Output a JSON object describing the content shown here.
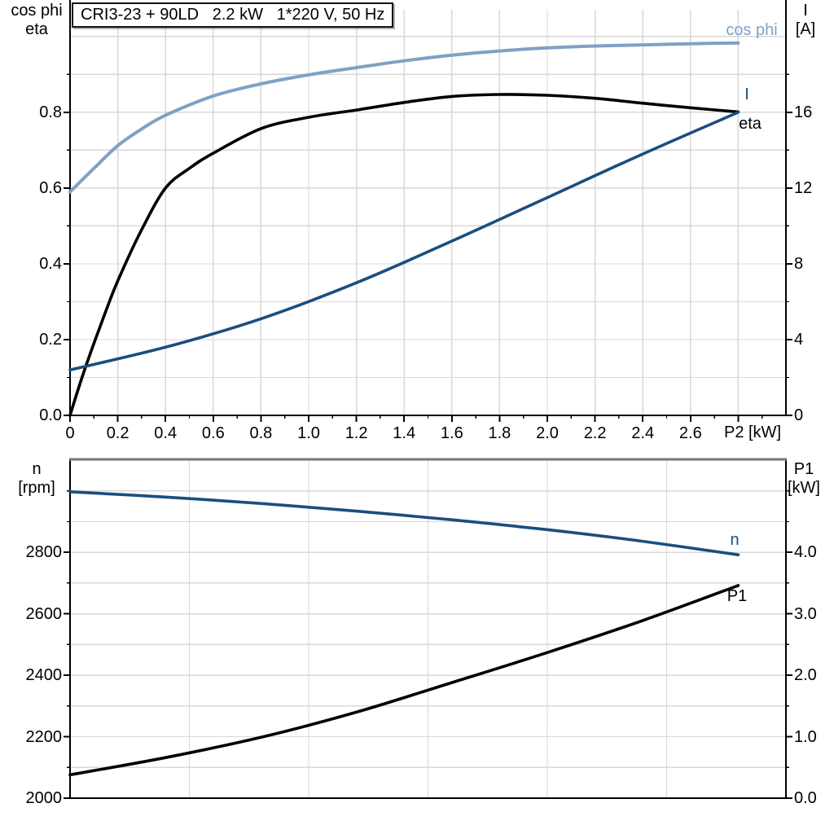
{
  "title_box": "CRI3-23 + 90LD   2.2 kW   1*220 V, 50 Hz",
  "colors": {
    "light_blue": "#7EA1C6",
    "dark_blue": "#1B4E7D",
    "black": "#000000",
    "grid": "#D8D8D8",
    "frame": "#000000",
    "frame_gray": "#757575"
  },
  "chart_data": [
    {
      "id": "top",
      "type": "line",
      "x_axis": {
        "label": "P2 [kW]",
        "min": 0,
        "max": 3.0,
        "ticks": [
          [
            0,
            "0"
          ],
          [
            0.2,
            "0.2"
          ],
          [
            0.4,
            "0.4"
          ],
          [
            0.6,
            "0.6"
          ],
          [
            0.8,
            "0.8"
          ],
          [
            1.0,
            "1.0"
          ],
          [
            1.2,
            "1.2"
          ],
          [
            1.4,
            "1.4"
          ],
          [
            1.6,
            "1.6"
          ],
          [
            1.8,
            "1.8"
          ],
          [
            2.0,
            "2.0"
          ],
          [
            2.2,
            "2.2"
          ],
          [
            2.4,
            "2.4"
          ],
          [
            2.6,
            "2.6"
          ],
          [
            2.8,
            ""
          ]
        ],
        "minor_step": 0.1,
        "minor_max": 2.9,
        "grid_step": 0.2
      },
      "left_axis": {
        "title": [
          "cos phi",
          "eta"
        ],
        "min": 0,
        "max": 1.075,
        "ticks": [
          [
            0.0,
            "0.0"
          ],
          [
            0.2,
            "0.2"
          ],
          [
            0.4,
            "0.4"
          ],
          [
            0.6,
            "0.6"
          ],
          [
            0.8,
            "0.8"
          ]
        ],
        "minor_step": 0.1,
        "minor_max": 0.9,
        "grid_step": 0.1,
        "grid_max": 1.0
      },
      "right_axis": {
        "title": [
          "I",
          "[A]"
        ],
        "min": 0,
        "max": 21.5,
        "ticks": [
          [
            0,
            "0"
          ],
          [
            4,
            "4"
          ],
          [
            8,
            "8"
          ],
          [
            12,
            "12"
          ],
          [
            16,
            "16"
          ]
        ],
        "minor_step": 2,
        "minor_max": 18
      },
      "series": [
        {
          "name": "cos phi",
          "axis": "left",
          "color": "light_blue",
          "x": [
            0,
            0.1,
            0.2,
            0.3,
            0.4,
            0.6,
            0.8,
            1.0,
            1.2,
            1.4,
            1.6,
            1.8,
            2.0,
            2.2,
            2.4,
            2.6,
            2.8
          ],
          "y": [
            0.59,
            0.652,
            0.712,
            0.756,
            0.792,
            0.843,
            0.875,
            0.899,
            0.918,
            0.936,
            0.951,
            0.962,
            0.97,
            0.975,
            0.978,
            0.981,
            0.983
          ]
        },
        {
          "name": "eta",
          "axis": "left",
          "color": "black",
          "x": [
            0,
            0.05,
            0.1,
            0.15,
            0.2,
            0.3,
            0.4,
            0.5,
            0.6,
            0.8,
            1.0,
            1.2,
            1.4,
            1.6,
            1.8,
            2.0,
            2.2,
            2.4,
            2.6,
            2.8
          ],
          "y": [
            0,
            0.1,
            0.19,
            0.275,
            0.355,
            0.49,
            0.6,
            0.652,
            0.692,
            0.757,
            0.787,
            0.806,
            0.826,
            0.842,
            0.847,
            0.845,
            0.837,
            0.824,
            0.812,
            0.801
          ]
        },
        {
          "name": "I",
          "axis": "right",
          "color": "dark_blue",
          "x": [
            0,
            0.4,
            0.8,
            1.2,
            1.6,
            2.0,
            2.4,
            2.8
          ],
          "y": [
            2.4,
            3.6,
            5.1,
            7.0,
            9.2,
            11.5,
            13.8,
            16.0
          ]
        }
      ]
    },
    {
      "id": "bottom",
      "type": "line",
      "x_axis": {
        "label": "",
        "min": 0,
        "max": 3.0,
        "ticks": [],
        "minor_step": 0,
        "minor_max": 0,
        "grid_step": 0.5
      },
      "left_axis": {
        "title": [
          "n",
          "[rpm]"
        ],
        "min": 2000,
        "max": 3100,
        "ticks": [
          [
            2000,
            "2000"
          ],
          [
            2200,
            "2200"
          ],
          [
            2400,
            "2400"
          ],
          [
            2600,
            "2600"
          ],
          [
            2800,
            "2800"
          ]
        ],
        "minor_step": 100,
        "minor_max": 3000,
        "grid_step": 100,
        "grid_max": 3000
      },
      "right_axis": {
        "title": [
          "P1",
          "[kW]"
        ],
        "min": 0,
        "max": 5.5,
        "ticks": [
          [
            0,
            "0.0"
          ],
          [
            1,
            "1.0"
          ],
          [
            2,
            "2.0"
          ],
          [
            3,
            "3.0"
          ],
          [
            4,
            "4.0"
          ]
        ],
        "minor_step": 0.5,
        "minor_max": 5.0
      },
      "series": [
        {
          "name": "n",
          "axis": "left",
          "color": "dark_blue",
          "x": [
            0,
            0.4,
            0.8,
            1.2,
            1.6,
            2.0,
            2.4,
            2.8
          ],
          "y": [
            2997,
            2980,
            2959,
            2934,
            2906,
            2874,
            2836,
            2792
          ]
        },
        {
          "name": "P1",
          "axis": "right",
          "color": "black",
          "x": [
            0,
            0.4,
            0.8,
            1.2,
            1.6,
            2.0,
            2.4,
            2.8
          ],
          "y": [
            0.38,
            0.66,
            0.99,
            1.4,
            1.88,
            2.37,
            2.89,
            3.46
          ]
        }
      ]
    }
  ]
}
